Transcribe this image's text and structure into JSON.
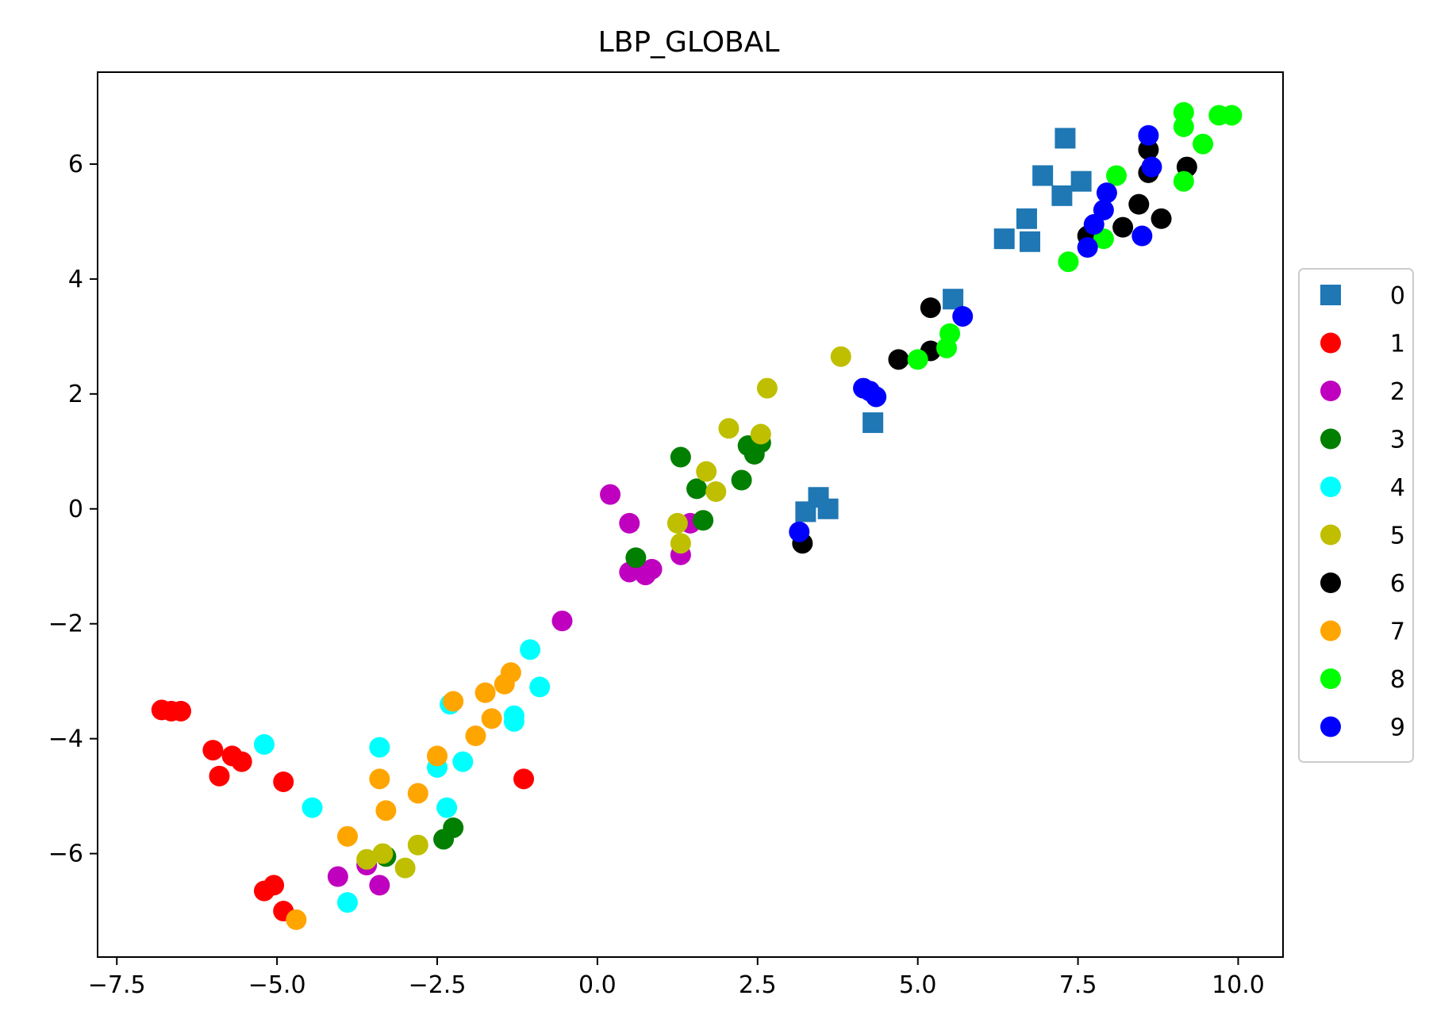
{
  "chart_data": {
    "type": "scatter",
    "title": "LBP_GLOBAL",
    "xlabel": "",
    "ylabel": "",
    "xlim": [
      -7.8,
      10.7
    ],
    "ylim": [
      -7.8,
      7.6
    ],
    "xticks": [
      -7.5,
      -5.0,
      -2.5,
      0.0,
      2.5,
      5.0,
      7.5,
      10.0
    ],
    "xtick_labels": [
      "−7.5",
      "−5.0",
      "−2.5",
      "0.0",
      "2.5",
      "5.0",
      "7.5",
      "10.0"
    ],
    "yticks": [
      -6,
      -4,
      -2,
      0,
      2,
      4,
      6
    ],
    "ytick_labels": [
      "−6",
      "−4",
      "−2",
      "0",
      "2",
      "4",
      "6"
    ],
    "grid": false,
    "legend_position": "right-outside",
    "series": [
      {
        "name": "0",
        "color": "#1f77b4",
        "marker": "square",
        "points": [
          [
            7.3,
            6.45
          ],
          [
            6.95,
            5.8
          ],
          [
            7.25,
            5.45
          ],
          [
            7.55,
            5.7
          ],
          [
            6.7,
            5.05
          ],
          [
            6.35,
            4.7
          ],
          [
            6.75,
            4.65
          ],
          [
            5.55,
            3.65
          ],
          [
            4.3,
            1.5
          ],
          [
            3.45,
            0.2
          ],
          [
            3.25,
            -0.05
          ],
          [
            3.6,
            0.0
          ]
        ]
      },
      {
        "name": "1",
        "color": "#ff0000",
        "marker": "circle",
        "points": [
          [
            -6.8,
            -3.5
          ],
          [
            -6.65,
            -3.52
          ],
          [
            -6.5,
            -3.52
          ],
          [
            -6.0,
            -4.2
          ],
          [
            -5.7,
            -4.3
          ],
          [
            -5.55,
            -4.4
          ],
          [
            -5.9,
            -4.65
          ],
          [
            -4.9,
            -4.75
          ],
          [
            -1.15,
            -4.7
          ],
          [
            -5.2,
            -6.65
          ],
          [
            -5.05,
            -6.55
          ],
          [
            -4.9,
            -7.0
          ]
        ]
      },
      {
        "name": "2",
        "color": "#bf00bf",
        "marker": "circle",
        "points": [
          [
            0.2,
            0.25
          ],
          [
            0.5,
            -0.25
          ],
          [
            0.5,
            -1.1
          ],
          [
            0.75,
            -1.15
          ],
          [
            0.85,
            -1.05
          ],
          [
            1.3,
            -0.8
          ],
          [
            1.45,
            -0.25
          ],
          [
            -0.55,
            -1.95
          ],
          [
            -4.05,
            -6.4
          ],
          [
            -3.6,
            -6.2
          ],
          [
            -3.4,
            -6.55
          ]
        ]
      },
      {
        "name": "3",
        "color": "#007f00",
        "marker": "circle",
        "points": [
          [
            1.3,
            0.9
          ],
          [
            1.55,
            0.35
          ],
          [
            1.65,
            -0.2
          ],
          [
            0.6,
            -0.85
          ],
          [
            2.25,
            0.5
          ],
          [
            2.35,
            1.1
          ],
          [
            2.45,
            0.95
          ],
          [
            2.55,
            1.15
          ],
          [
            -2.25,
            -5.55
          ],
          [
            -2.4,
            -5.75
          ],
          [
            -3.3,
            -6.05
          ]
        ]
      },
      {
        "name": "4",
        "color": "#00ffff",
        "marker": "circle",
        "points": [
          [
            -5.2,
            -4.1
          ],
          [
            -4.45,
            -5.2
          ],
          [
            -3.4,
            -4.15
          ],
          [
            -3.9,
            -6.85
          ],
          [
            -2.5,
            -4.5
          ],
          [
            -2.35,
            -5.2
          ],
          [
            -2.3,
            -3.4
          ],
          [
            -2.1,
            -4.4
          ],
          [
            -1.3,
            -3.6
          ],
          [
            -1.3,
            -3.7
          ],
          [
            -1.05,
            -2.45
          ],
          [
            -0.9,
            -3.1
          ]
        ]
      },
      {
        "name": "5",
        "color": "#bfbf00",
        "marker": "circle",
        "points": [
          [
            1.25,
            -0.25
          ],
          [
            1.3,
            -0.6
          ],
          [
            1.7,
            0.65
          ],
          [
            1.85,
            0.3
          ],
          [
            2.05,
            1.4
          ],
          [
            2.55,
            1.3
          ],
          [
            2.65,
            2.1
          ],
          [
            3.8,
            2.65
          ],
          [
            -3.6,
            -6.1
          ],
          [
            -3.35,
            -6.0
          ],
          [
            -3.0,
            -6.25
          ],
          [
            -2.8,
            -5.85
          ]
        ]
      },
      {
        "name": "6",
        "color": "#000000",
        "marker": "circle",
        "points": [
          [
            3.2,
            -0.6
          ],
          [
            4.7,
            2.6
          ],
          [
            5.2,
            3.5
          ],
          [
            5.2,
            2.75
          ],
          [
            7.65,
            4.75
          ],
          [
            8.2,
            4.9
          ],
          [
            8.45,
            5.3
          ],
          [
            8.6,
            5.85
          ],
          [
            8.6,
            6.25
          ],
          [
            8.8,
            5.05
          ],
          [
            9.2,
            5.95
          ]
        ]
      },
      {
        "name": "7",
        "color": "#ffa500",
        "marker": "circle",
        "points": [
          [
            -4.7,
            -7.15
          ],
          [
            -3.9,
            -5.7
          ],
          [
            -3.4,
            -4.7
          ],
          [
            -3.3,
            -5.25
          ],
          [
            -2.8,
            -4.95
          ],
          [
            -2.5,
            -4.3
          ],
          [
            -2.25,
            -3.35
          ],
          [
            -1.9,
            -3.95
          ],
          [
            -1.75,
            -3.2
          ],
          [
            -1.65,
            -3.65
          ],
          [
            -1.45,
            -3.05
          ],
          [
            -1.35,
            -2.85
          ]
        ]
      },
      {
        "name": "8",
        "color": "#00ff00",
        "marker": "circle",
        "points": [
          [
            5.0,
            2.6
          ],
          [
            5.45,
            2.8
          ],
          [
            5.5,
            3.05
          ],
          [
            7.35,
            4.3
          ],
          [
            7.9,
            4.7
          ],
          [
            8.1,
            5.8
          ],
          [
            9.15,
            6.9
          ],
          [
            9.15,
            6.65
          ],
          [
            9.15,
            5.7
          ],
          [
            9.45,
            6.35
          ],
          [
            9.7,
            6.85
          ],
          [
            9.9,
            6.85
          ]
        ]
      },
      {
        "name": "9",
        "color": "#0000ff",
        "marker": "circle",
        "points": [
          [
            3.15,
            -0.4
          ],
          [
            4.15,
            2.1
          ],
          [
            4.25,
            2.05
          ],
          [
            4.35,
            1.95
          ],
          [
            5.7,
            3.35
          ],
          [
            7.65,
            4.55
          ],
          [
            7.75,
            4.95
          ],
          [
            7.9,
            5.2
          ],
          [
            7.95,
            5.5
          ],
          [
            8.5,
            4.75
          ],
          [
            8.6,
            6.5
          ],
          [
            8.65,
            5.95
          ]
        ]
      }
    ]
  }
}
